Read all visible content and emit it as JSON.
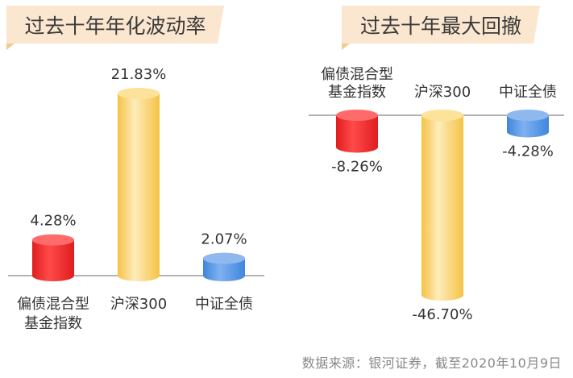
{
  "source_note": "数据来源：银河证券，截至2020年10月9日",
  "colors": {
    "title_bg": "#fbe7cf",
    "title_text": "#3a3a3a",
    "axis": "#9a9a9a",
    "red_top": "#ff6b6b",
    "red_light": "#ff4a4a",
    "red_dark": "#e01d1d",
    "yellow_top": "#fde29a",
    "yellow_light": "#fdecbb",
    "yellow_dark": "#f6c244",
    "blue_top": "#8fb8ee",
    "blue_light": "#7fb1f0",
    "blue_dark": "#3f86dc"
  },
  "chart_data": [
    {
      "type": "bar",
      "title": "过去十年年化波动率",
      "categories": [
        "偏债混合型基金指数",
        "沪深300",
        "中证全债"
      ],
      "category_lines": [
        [
          "偏债混合型",
          "基金指数"
        ],
        [
          "沪深300"
        ],
        [
          "中证全债"
        ]
      ],
      "values": [
        4.28,
        21.83,
        2.07
      ],
      "value_labels": [
        "4.28%",
        "21.83%",
        "2.07%"
      ],
      "series_colors": [
        "red",
        "yellow",
        "blue"
      ],
      "unit": "%",
      "ylim": [
        0,
        22
      ]
    },
    {
      "type": "bar",
      "title": "过去十年最大回撤",
      "categories": [
        "偏债混合型基金指数",
        "沪深300",
        "中证全债"
      ],
      "category_lines": [
        [
          "偏债混合型",
          "基金指数"
        ],
        [
          "沪深300"
        ],
        [
          "中证全债"
        ]
      ],
      "values": [
        -8.26,
        -46.7,
        -4.28
      ],
      "value_labels": [
        "-8.26%",
        "-46.70%",
        "-4.28%"
      ],
      "series_colors": [
        "red",
        "yellow",
        "blue"
      ],
      "unit": "%",
      "ylim": [
        -47,
        0
      ]
    }
  ]
}
